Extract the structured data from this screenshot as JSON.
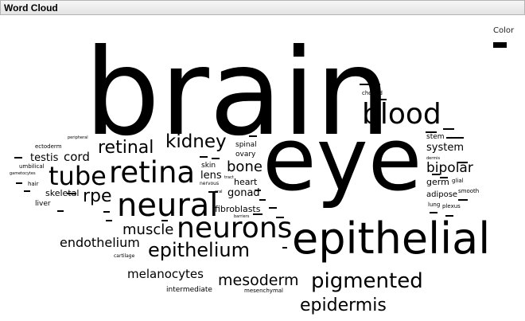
{
  "panel": {
    "title": "Word Cloud"
  },
  "legend": {
    "title": "Color",
    "swatch_color": "#000000"
  },
  "words": [
    "brain",
    "eye",
    "epithelial",
    "neural",
    "neurons",
    "retina",
    "blood",
    "tube",
    "pigmented",
    "epithelium",
    "epidermis",
    "kidney",
    "retinal",
    "mesoderm",
    "muscle",
    "bipolar",
    "rpe",
    "endothelium",
    "bone",
    "melanocytes",
    "system",
    "cord",
    "gonad",
    "testis",
    "lens",
    "skeletal",
    "heart",
    "fibroblasts",
    "germ",
    "adipose",
    "spinal",
    "ovary",
    "skin",
    "intermediate",
    "mesenchymal",
    "liver",
    "stem",
    "choroid",
    "ectoderm",
    "hair",
    "umbilical",
    "smooth",
    "lung",
    "plexus",
    "glial",
    "nervous",
    "dermis",
    "cartilage",
    "peripheral",
    "gametocytes",
    "barriers",
    "tract",
    "oral"
  ]
}
